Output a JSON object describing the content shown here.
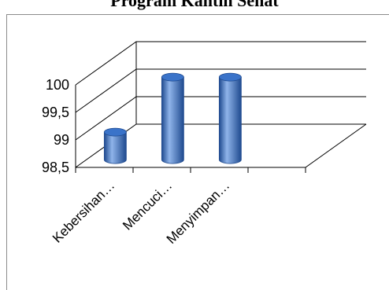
{
  "chart_data": {
    "type": "bar",
    "title": "Program Kantin Sehat",
    "categories": [
      "Kebersihan…",
      "Mencuci…",
      "Menyimpan…"
    ],
    "values": [
      99,
      100,
      100
    ],
    "ylim": [
      98.5,
      100
    ],
    "y_ticks": [
      "98,5",
      "99",
      "99,5",
      "100"
    ],
    "xlabel": "",
    "ylabel": "",
    "grid": true,
    "legend": "none",
    "style": "3d-cylinder",
    "colors": {
      "bar": "#3a73c9",
      "bar_dark": "#1f4a8f",
      "bar_light": "#8fb4ea",
      "grid": "#000000"
    }
  }
}
